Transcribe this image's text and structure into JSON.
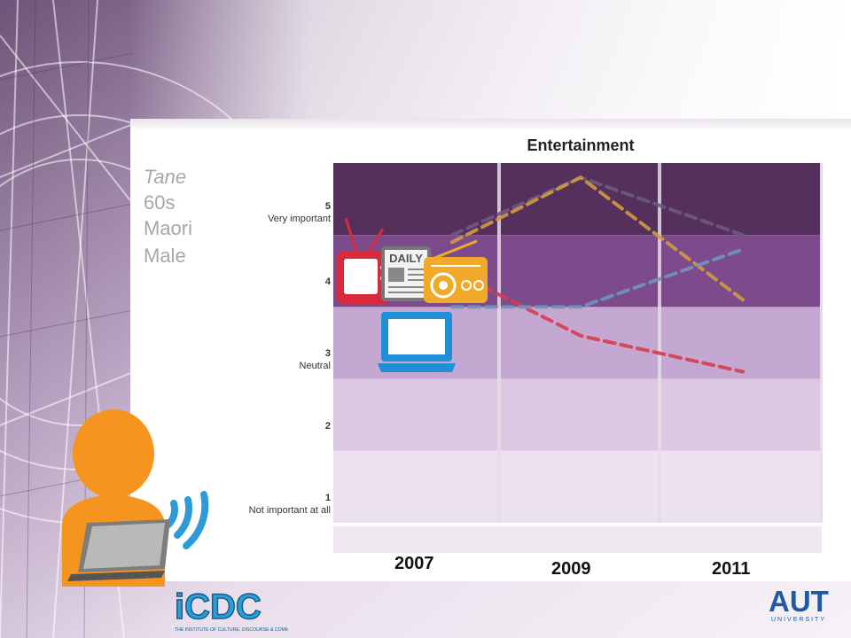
{
  "person": {
    "lines": [
      "Tane",
      "60s",
      "Maori",
      "Male"
    ]
  },
  "chart_data": {
    "type": "line",
    "title": "Entertainment",
    "x": [
      "2007",
      "2009",
      "2011"
    ],
    "ylim": [
      1,
      5
    ],
    "yticks": [
      {
        "value": 5,
        "label": "5",
        "sublabel": "Very important"
      },
      {
        "value": 4,
        "label": "4",
        "sublabel": ""
      },
      {
        "value": 3,
        "label": "3",
        "sublabel": "Neutral"
      },
      {
        "value": 2,
        "label": "2",
        "sublabel": ""
      },
      {
        "value": 1,
        "label": "1",
        "sublabel": "Not important at all"
      }
    ],
    "series": [
      {
        "icon": "newspaper-icon",
        "color": "#6e5a7e",
        "values": [
          4.5,
          5.3,
          4.5
        ]
      },
      {
        "icon": "radio-icon",
        "color": "#d09a40",
        "values": [
          4.4,
          5.3,
          3.6
        ]
      },
      {
        "icon": "tv-icon",
        "color": "#d63c4f",
        "values": [
          4.0,
          3.1,
          2.6
        ]
      },
      {
        "icon": "laptop-icon",
        "color": "#6f93bb",
        "values": [
          3.5,
          3.5,
          4.3
        ]
      }
    ],
    "band_colors": [
      "#55305c",
      "#7d4a8c",
      "#c5a8d2",
      "#dcc8e3",
      "#ece2ef"
    ]
  },
  "logos": {
    "left": {
      "text": "iCDC",
      "tagline": "THE INSTITUTE OF CULTURE, DISCOURSE & COMMUNICATION"
    },
    "right": {
      "text": "AUT",
      "tagline": "UNIVERSITY"
    }
  }
}
